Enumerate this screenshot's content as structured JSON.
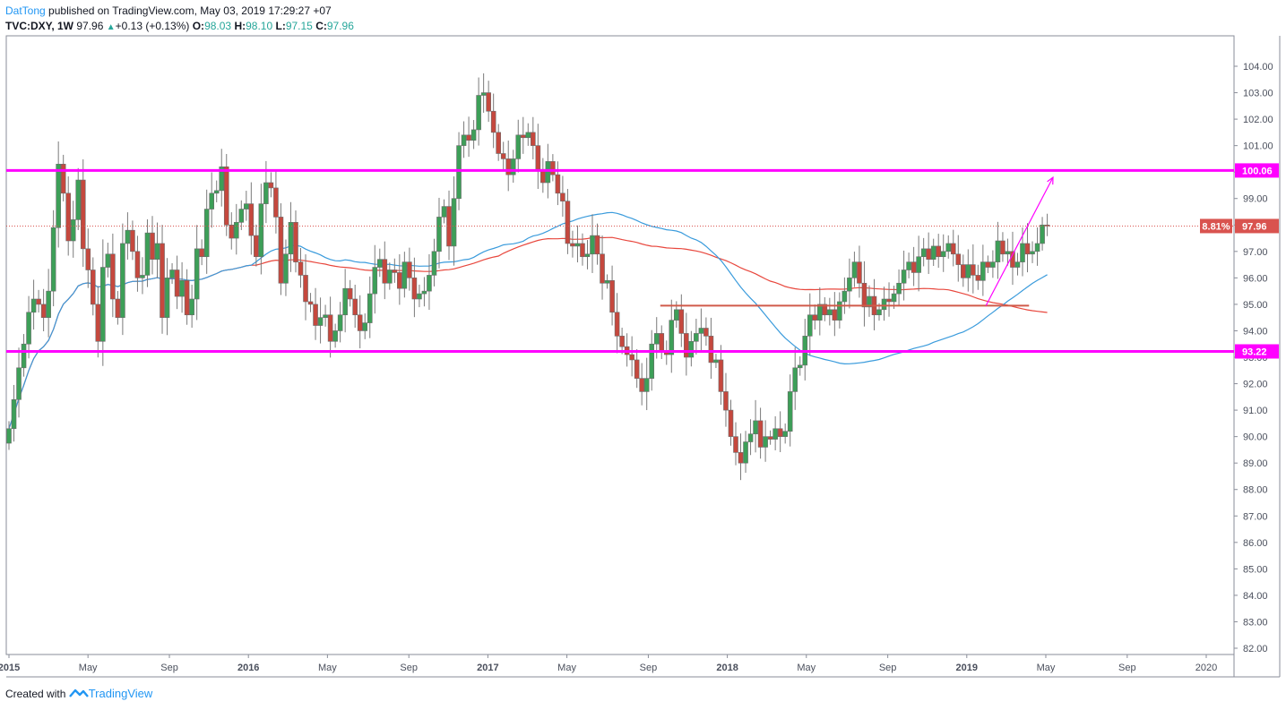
{
  "header": {
    "author": "DatTong",
    "published": "published on TradingView.com, May 03, 2019 17:29:27 +07",
    "symbol": "TVC:DXY, 1W",
    "last": "97.96",
    "change": "+0.13 (+0.13%)",
    "o_label": "O:",
    "o": "98.03",
    "h_label": "H:",
    "h": "98.10",
    "l_label": "L:",
    "l": "97.15",
    "c_label": "C:",
    "c": "97.96"
  },
  "footer": {
    "created_with": "Created with",
    "brand": "TradingView"
  },
  "colors": {
    "up": "#26a69a",
    "down": "#ef5350",
    "up_fill": "#3d9f58",
    "down_fill": "#c5483e",
    "level": "#ff00ff",
    "ma_fast": "#3a9bdc",
    "ma_slow": "#e8473d",
    "support": "#d05a4a",
    "last_price": "#d9534f",
    "arrow": "#ff00ff"
  },
  "chart_data": {
    "type": "candlestick",
    "title": "TVC:DXY, 1W",
    "ylim": [
      81.7,
      104.9
    ],
    "xlim": [
      2015.0,
      2020.1
    ],
    "y_ticks": [
      "82.00",
      "83.00",
      "84.00",
      "85.00",
      "86.00",
      "87.00",
      "88.00",
      "89.00",
      "90.00",
      "91.00",
      "92.00",
      "93.00",
      "94.00",
      "95.00",
      "96.00",
      "97.00",
      "98.00",
      "99.00",
      "100.00",
      "101.00",
      "102.00",
      "103.00",
      "104.00"
    ],
    "x_ticks": [
      {
        "t": 2015.0,
        "label": "2015",
        "bold": true
      },
      {
        "t": 2015.33,
        "label": "May"
      },
      {
        "t": 2015.67,
        "label": "Sep"
      },
      {
        "t": 2016.0,
        "label": "2016",
        "bold": true
      },
      {
        "t": 2016.33,
        "label": "May"
      },
      {
        "t": 2016.67,
        "label": "Sep"
      },
      {
        "t": 2017.0,
        "label": "2017",
        "bold": true
      },
      {
        "t": 2017.33,
        "label": "May"
      },
      {
        "t": 2017.67,
        "label": "Sep"
      },
      {
        "t": 2018.0,
        "label": "2018",
        "bold": true
      },
      {
        "t": 2018.33,
        "label": "May"
      },
      {
        "t": 2018.67,
        "label": "Sep"
      },
      {
        "t": 2019.0,
        "label": "2019",
        "bold": true
      },
      {
        "t": 2019.33,
        "label": "May"
      },
      {
        "t": 2019.67,
        "label": "Sep"
      },
      {
        "t": 2020.0,
        "label": "2020"
      }
    ],
    "levels": [
      {
        "name": "resistance",
        "value": 100.06,
        "label": "100.06"
      },
      {
        "name": "support",
        "value": 93.22,
        "label": "93.22"
      }
    ],
    "support_line": {
      "value": 94.95,
      "t_start": 2017.72,
      "t_end": 2019.26
    },
    "last_price": {
      "value": 97.96,
      "label": "97.96",
      "change_label": "8.81%"
    },
    "arrow": {
      "t0": 2019.08,
      "v0": 94.95,
      "t1": 2019.36,
      "v1": 99.8
    },
    "weekly_closes": [
      90.3,
      91.4,
      92.6,
      93.5,
      94.7,
      95.2,
      95.0,
      94.5,
      95.5,
      97.9,
      100.3,
      99.2,
      97.4,
      98.2,
      99.7,
      97.1,
      96.3,
      95.0,
      93.6,
      96.4,
      96.9,
      95.2,
      94.5,
      97.3,
      97.8,
      97.0,
      96.0,
      96.1,
      97.7,
      96.7,
      97.3,
      94.5,
      96.0,
      96.3,
      95.3,
      95.9,
      94.6,
      95.2,
      97.1,
      96.8,
      98.6,
      99.2,
      99.3,
      100.2,
      98.0,
      97.5,
      98.1,
      98.6,
      98.8,
      97.6,
      96.8,
      98.8,
      99.6,
      99.4,
      98.3,
      95.8,
      96.9,
      98.1,
      96.6,
      96.1,
      95.1,
      95.0,
      94.2,
      94.5,
      94.6,
      93.6,
      94.0,
      94.6,
      95.6,
      95.2,
      94.6,
      94.0,
      94.3,
      95.4,
      96.4,
      96.7,
      95.8,
      96.3,
      96.2,
      95.6,
      96.6,
      96.0,
      95.2,
      95.4,
      95.5,
      96.1,
      97.0,
      98.3,
      98.7,
      97.2,
      99.0,
      101.0,
      101.4,
      101.2,
      101.6,
      102.9,
      103.0,
      102.3,
      101.5,
      100.7,
      100.5,
      99.9,
      100.5,
      101.4,
      101.3,
      101.5,
      101.0,
      100.1,
      99.6,
      100.4,
      99.9,
      99.2,
      98.9,
      97.3,
      97.2,
      97.3,
      96.8,
      96.9,
      97.6,
      96.9,
      95.8,
      95.9,
      94.7,
      93.8,
      93.4,
      93.1,
      92.9,
      92.2,
      91.7,
      92.2,
      93.5,
      93.9,
      93.2,
      93.1,
      94.4,
      94.8,
      93.9,
      93.0,
      93.6,
      93.9,
      94.1,
      93.8,
      92.8,
      92.9,
      91.7,
      91.0,
      90.0,
      89.4,
      89.0,
      89.8,
      90.1,
      90.6,
      89.6,
      90.0,
      89.9,
      90.3,
      90.0,
      90.2,
      91.7,
      92.6,
      92.7,
      93.8,
      94.6,
      94.4,
      95.0,
      94.6,
      94.8,
      94.4,
      95.1,
      95.5,
      96.0,
      96.6,
      95.8,
      94.9,
      95.3,
      94.6,
      94.8,
      95.2,
      95.1,
      95.4,
      95.8,
      96.3,
      96.6,
      96.2,
      96.8,
      97.1,
      96.7,
      97.2,
      96.8,
      97.0,
      97.3,
      96.9,
      96.5,
      96.0,
      96.5,
      96.1,
      95.9,
      96.6,
      96.4,
      96.6,
      97.4,
      96.9,
      97.0,
      96.4,
      96.6,
      97.3,
      96.9,
      97.0,
      97.3,
      98.0,
      97.96
    ]
  }
}
